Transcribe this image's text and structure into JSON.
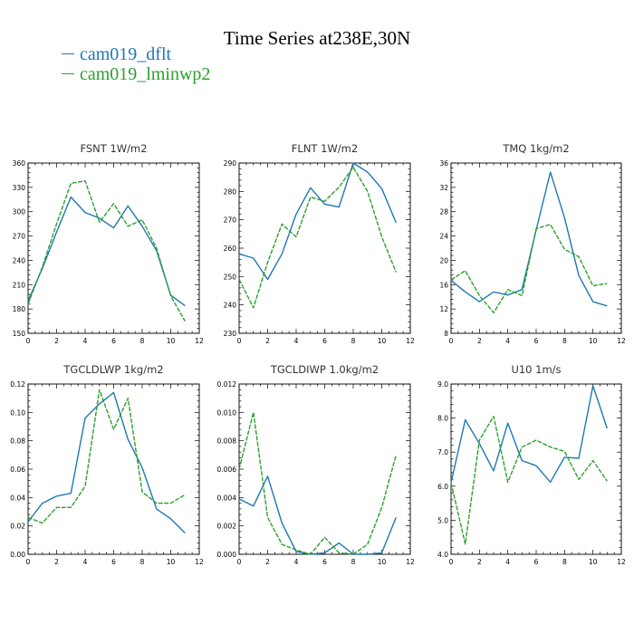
{
  "figure_title": "Time Series at238E,30N",
  "legend": [
    {
      "label": "cam019_dflt",
      "color": "#1f77b4",
      "style": "solid"
    },
    {
      "label": "cam019_lminwp2",
      "color": "#2ca02c",
      "style": "dashed"
    }
  ],
  "chart_data": [
    {
      "type": "line",
      "title": "FSNT   1W/m2",
      "xlim": [
        0,
        12
      ],
      "xticks": [
        0,
        2,
        4,
        6,
        8,
        10,
        12
      ],
      "ylim": [
        150,
        360
      ],
      "yticks": [
        150,
        180,
        210,
        240,
        270,
        300,
        330,
        360
      ],
      "ytick_labels": [
        "150",
        "180",
        "210",
        "240",
        "270",
        "300",
        "330",
        "360"
      ],
      "x": [
        0,
        1,
        2,
        3,
        4,
        5,
        6,
        7,
        8,
        9,
        10,
        11
      ],
      "series": [
        {
          "name": "cam019_dflt",
          "values": [
            190,
            230,
            275,
            318,
            299,
            292,
            280,
            307,
            282,
            252,
            197,
            184
          ]
        },
        {
          "name": "cam019_lminwp2",
          "values": [
            186,
            232,
            285,
            335,
            338,
            287,
            310,
            282,
            290,
            255,
            196,
            165
          ]
        }
      ]
    },
    {
      "type": "line",
      "title": "FLNT   1W/m2",
      "xlim": [
        0,
        12
      ],
      "xticks": [
        0,
        2,
        4,
        6,
        8,
        10,
        12
      ],
      "ylim": [
        230,
        290
      ],
      "yticks": [
        230,
        240,
        250,
        260,
        270,
        280,
        290
      ],
      "ytick_labels": [
        "230",
        "240",
        "250",
        "260",
        "270",
        "280",
        "290"
      ],
      "x": [
        0,
        1,
        2,
        3,
        4,
        5,
        6,
        7,
        8,
        9,
        10,
        11
      ],
      "series": [
        {
          "name": "cam019_dflt",
          "values": [
            258,
            256.5,
            249,
            258,
            272,
            281.3,
            275.5,
            274.5,
            290,
            286.8,
            281,
            269
          ]
        },
        {
          "name": "cam019_lminwp2",
          "values": [
            249,
            239,
            255,
            268.5,
            264,
            278,
            276.5,
            281.5,
            288.5,
            280,
            264,
            251.5
          ]
        }
      ]
    },
    {
      "type": "line",
      "title": "TMQ   1kg/m2",
      "xlim": [
        0,
        12
      ],
      "xticks": [
        0,
        2,
        4,
        6,
        8,
        10,
        12
      ],
      "ylim": [
        8,
        36
      ],
      "yticks": [
        8,
        12,
        16,
        20,
        24,
        28,
        32,
        36
      ],
      "ytick_labels": [
        "8",
        "12",
        "16",
        "20",
        "24",
        "28",
        "32",
        "36"
      ],
      "x": [
        0,
        1,
        2,
        3,
        4,
        5,
        6,
        7,
        8,
        9,
        10,
        11
      ],
      "series": [
        {
          "name": "cam019_dflt",
          "values": [
            16.7,
            14.8,
            13.2,
            14.8,
            14.3,
            15.2,
            25,
            34.5,
            27,
            17.5,
            13.2,
            12.5
          ]
        },
        {
          "name": "cam019_lminwp2",
          "values": [
            16.8,
            18.3,
            14.2,
            11.4,
            15.2,
            14.2,
            25.2,
            25.9,
            21.8,
            20.6,
            15.8,
            16.2
          ]
        }
      ]
    },
    {
      "type": "line",
      "title": "TGCLDLWP   1kg/m2",
      "xlim": [
        0,
        12
      ],
      "xticks": [
        0,
        2,
        4,
        6,
        8,
        10,
        12
      ],
      "ylim": [
        0,
        0.12
      ],
      "yticks": [
        0,
        0.02,
        0.04,
        0.06,
        0.08,
        0.1,
        0.12
      ],
      "ytick_labels": [
        "0.00",
        "0.02",
        "0.04",
        "0.06",
        "0.08",
        "0.10",
        "0.12"
      ],
      "x": [
        0,
        1,
        2,
        3,
        4,
        5,
        6,
        7,
        8,
        9,
        10,
        11
      ],
      "series": [
        {
          "name": "cam019_dflt",
          "values": [
            0.023,
            0.036,
            0.041,
            0.043,
            0.096,
            0.106,
            0.114,
            0.081,
            0.061,
            0.032,
            0.025,
            0.015
          ]
        },
        {
          "name": "cam019_lminwp2",
          "values": [
            0.026,
            0.022,
            0.033,
            0.033,
            0.048,
            0.116,
            0.088,
            0.11,
            0.044,
            0.036,
            0.036,
            0.042
          ]
        }
      ]
    },
    {
      "type": "line",
      "title": "TGCLDIWP   1.0kg/m2",
      "xlim": [
        0,
        12
      ],
      "xticks": [
        0,
        2,
        4,
        6,
        8,
        10,
        12
      ],
      "ylim": [
        0,
        0.012
      ],
      "yticks": [
        0,
        0.002,
        0.004,
        0.006,
        0.008,
        0.01,
        0.012
      ],
      "ytick_labels": [
        "0.000",
        "0.002",
        "0.004",
        "0.006",
        "0.008",
        "0.010",
        "0.012"
      ],
      "x": [
        0,
        1,
        2,
        3,
        4,
        5,
        6,
        7,
        8,
        9,
        10,
        11
      ],
      "series": [
        {
          "name": "cam019_dflt",
          "values": [
            0.0039,
            0.0034,
            0.0055,
            0.0022,
            0.0002,
            0.0,
            0.0001,
            0.0008,
            0.0,
            0.0,
            0.0001,
            0.0026
          ]
        },
        {
          "name": "cam019_lminwp2",
          "values": [
            0.006,
            0.01,
            0.0026,
            0.0007,
            0.0003,
            0.0,
            0.0012,
            0.0001,
            0.0,
            0.0007,
            0.0033,
            0.007
          ]
        }
      ]
    },
    {
      "type": "line",
      "title": "U10   1m/s",
      "xlim": [
        0,
        12
      ],
      "xticks": [
        0,
        2,
        4,
        6,
        8,
        10,
        12
      ],
      "ylim": [
        4,
        9
      ],
      "yticks": [
        4,
        5,
        6,
        7,
        8,
        9
      ],
      "ytick_labels": [
        "4.0",
        "5.0",
        "6.0",
        "7.0",
        "8.0",
        "9.0"
      ],
      "x": [
        0,
        1,
        2,
        3,
        4,
        5,
        6,
        7,
        8,
        9,
        10,
        11
      ],
      "series": [
        {
          "name": "cam019_dflt",
          "values": [
            6.1,
            7.95,
            7.25,
            6.45,
            7.85,
            6.75,
            6.6,
            6.12,
            6.85,
            6.82,
            8.95,
            7.7
          ]
        },
        {
          "name": "cam019_lminwp2",
          "values": [
            6.1,
            4.3,
            7.35,
            8.05,
            6.12,
            7.15,
            7.35,
            7.15,
            7.02,
            6.2,
            6.75,
            6.15
          ]
        }
      ]
    }
  ]
}
